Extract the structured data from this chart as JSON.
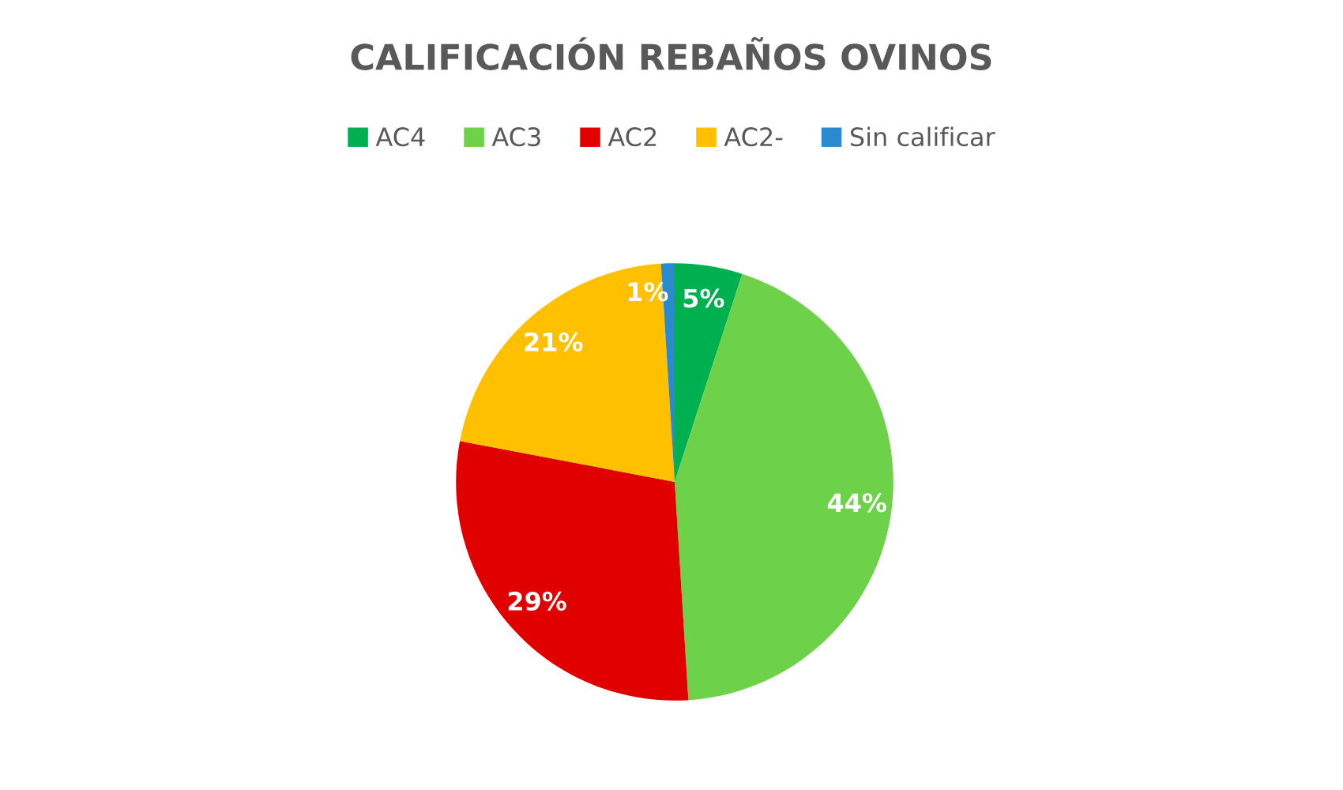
{
  "chart_data": {
    "type": "pie",
    "title": "CALIFICACIÓN REBAÑOS OVINOS",
    "categories": [
      "AC4",
      "AC3",
      "AC2",
      "AC2-",
      "Sin calificar"
    ],
    "values": [
      5,
      44,
      29,
      21,
      1
    ],
    "colors": [
      "#00b050",
      "#6dd14a",
      "#e00000",
      "#ffc000",
      "#2a8ad0"
    ],
    "value_labels": [
      "5%",
      "44%",
      "29%",
      "21%",
      "1%"
    ],
    "legend": "top"
  }
}
